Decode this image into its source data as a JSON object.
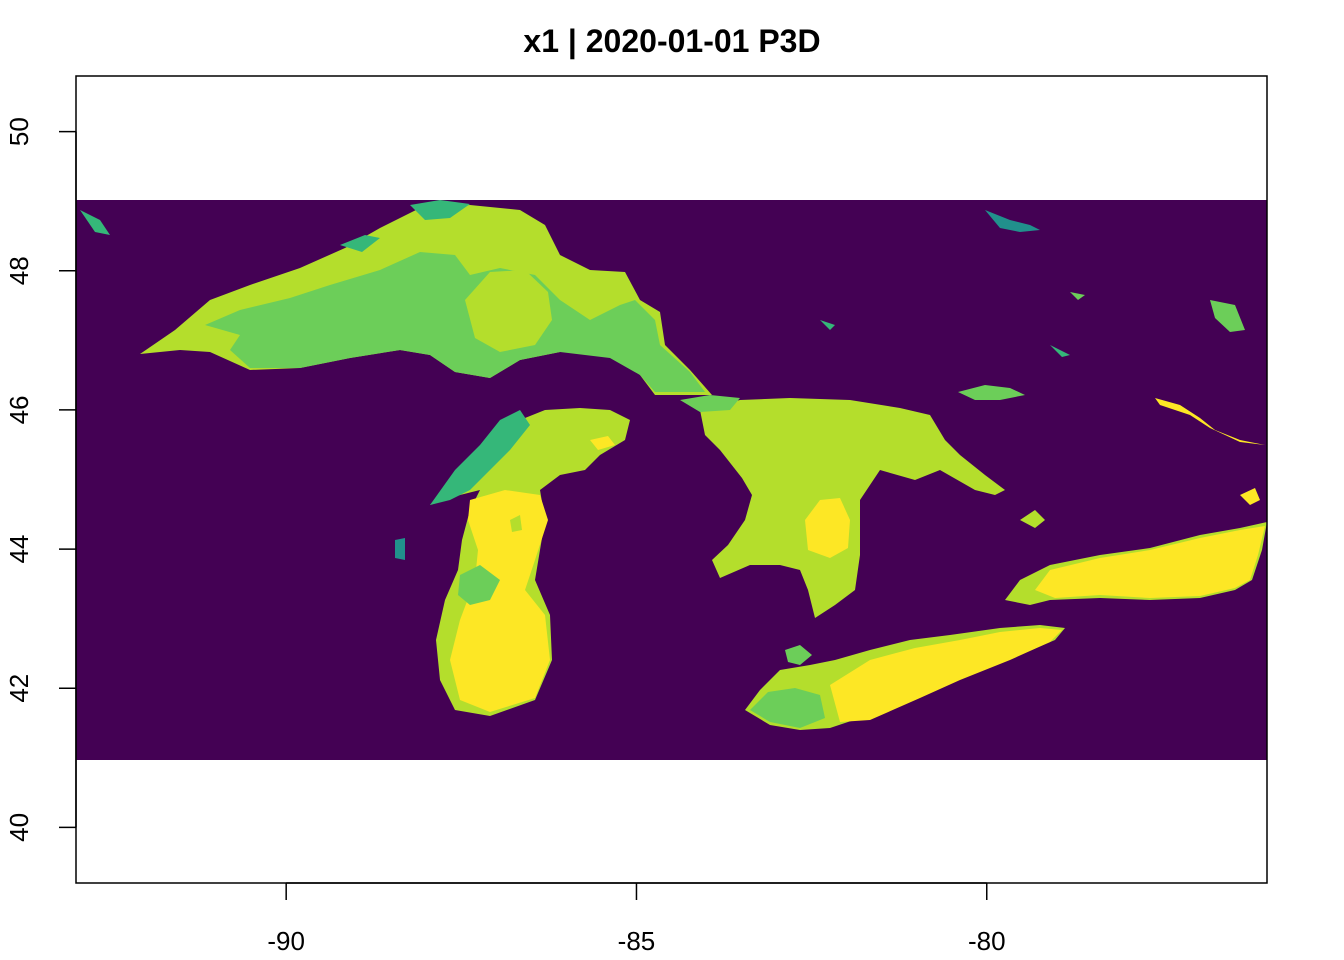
{
  "title": "x1 | 2020-01-01 P3D",
  "palette": {
    "background": "#440154",
    "low": "#21908C",
    "mid_low": "#35B779",
    "mid": "#6CCE59",
    "mid_high": "#B4DE2C",
    "high": "#FDE725"
  },
  "chart_data": {
    "type": "heatmap",
    "title": "x1 | 2020-01-01 P3D",
    "xlabel": "",
    "ylabel": "",
    "xlim": [
      -93,
      -76
    ],
    "ylim": [
      39.2,
      50.8
    ],
    "raster_extent": {
      "lon": [
        -93,
        -76
      ],
      "lat": [
        41,
        49
      ]
    },
    "x_ticks": [
      -90,
      -85,
      -80
    ],
    "y_ticks": [
      40,
      42,
      44,
      46,
      48,
      50
    ],
    "x_tick_labels": [
      "-90",
      "-85",
      "-80"
    ],
    "y_tick_labels": [
      "40",
      "42",
      "44",
      "46",
      "48",
      "50"
    ],
    "grid": false,
    "legend": "none"
  }
}
